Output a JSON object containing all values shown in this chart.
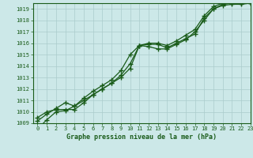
{
  "title": "Graphe pression niveau de la mer (hPa)",
  "background_color": "#cce8e8",
  "grid_color": "#aacccc",
  "line_color": "#1a5c1a",
  "x_values": [
    0,
    1,
    2,
    3,
    4,
    5,
    6,
    7,
    8,
    9,
    10,
    11,
    12,
    13,
    14,
    15,
    16,
    17,
    18,
    19,
    20,
    21,
    22,
    23
  ],
  "series1": [
    1008.5,
    1009.3,
    1010.0,
    1010.1,
    1010.5,
    1011.0,
    1011.5,
    1012.0,
    1012.5,
    1013.0,
    1013.8,
    1015.8,
    1015.9,
    1015.9,
    1015.6,
    1016.0,
    1016.4,
    1016.8,
    1018.2,
    1019.0,
    1019.3,
    1019.4,
    1019.4,
    1019.5
  ],
  "series2": [
    1009.2,
    1009.8,
    1010.3,
    1010.8,
    1010.5,
    1011.2,
    1011.8,
    1012.3,
    1012.8,
    1013.6,
    1015.0,
    1015.8,
    1015.7,
    1015.5,
    1015.5,
    1015.9,
    1016.3,
    1017.0,
    1018.0,
    1019.0,
    1019.4,
    1019.5,
    1019.5,
    1019.5
  ],
  "series3": [
    1009.5,
    1010.0,
    1010.2,
    1010.2,
    1010.2,
    1010.8,
    1011.5,
    1012.0,
    1012.5,
    1013.2,
    1014.2,
    1015.8,
    1016.0,
    1016.0,
    1015.8,
    1016.2,
    1016.7,
    1017.2,
    1018.4,
    1019.2,
    1019.5,
    1019.5,
    1019.5,
    1019.5
  ],
  "ylim": [
    1009,
    1019.5
  ],
  "xlim": [
    -0.5,
    23
  ],
  "yticks": [
    1009,
    1010,
    1011,
    1012,
    1013,
    1014,
    1015,
    1016,
    1017,
    1018,
    1019
  ],
  "xticks": [
    0,
    1,
    2,
    3,
    4,
    5,
    6,
    7,
    8,
    9,
    10,
    11,
    12,
    13,
    14,
    15,
    16,
    17,
    18,
    19,
    20,
    21,
    22,
    23
  ],
  "tick_fontsize": 5.0,
  "label_fontsize": 6.0
}
